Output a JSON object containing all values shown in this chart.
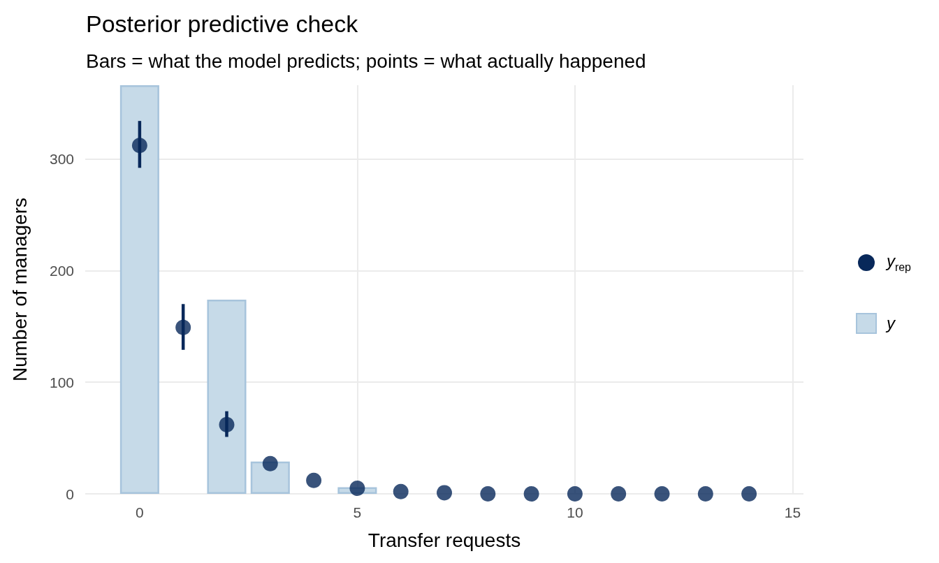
{
  "chart_data": {
    "type": "bar",
    "title": "Posterior predictive check",
    "subtitle": "Bars = what the model predicts; points = what actually happened",
    "xlabel": "Transfer requests",
    "ylabel": "Number of managers",
    "x": [
      0,
      1,
      2,
      3,
      4,
      5,
      6,
      7,
      8,
      9,
      10,
      11,
      12,
      13,
      14
    ],
    "series": [
      {
        "name": "y$_{rep}$",
        "type": "scatter",
        "color": "#08285a",
        "values": [
          312,
          149,
          62,
          27,
          12,
          5,
          2,
          1,
          0,
          0,
          0,
          0,
          0,
          0,
          0
        ],
        "errors": [
          [
            292,
            334
          ],
          [
            129,
            170
          ],
          [
            51,
            74
          ],
          null,
          null,
          null,
          null,
          null,
          null,
          null,
          null,
          null,
          null,
          null,
          null
        ]
      },
      {
        "name": "y",
        "color": "#c6dae8",
        "values": [
          366,
          0,
          174,
          29,
          0,
          6,
          0,
          0,
          0,
          0,
          0,
          0,
          0,
          0,
          0
        ]
      }
    ],
    "xlim": [
      -1.25,
      15.25
    ],
    "ylim": [
      0,
      366
    ],
    "xticks": [
      0,
      5,
      10,
      15
    ],
    "yticks": [
      0,
      100,
      200,
      300
    ],
    "grid": true,
    "legend": "right"
  }
}
